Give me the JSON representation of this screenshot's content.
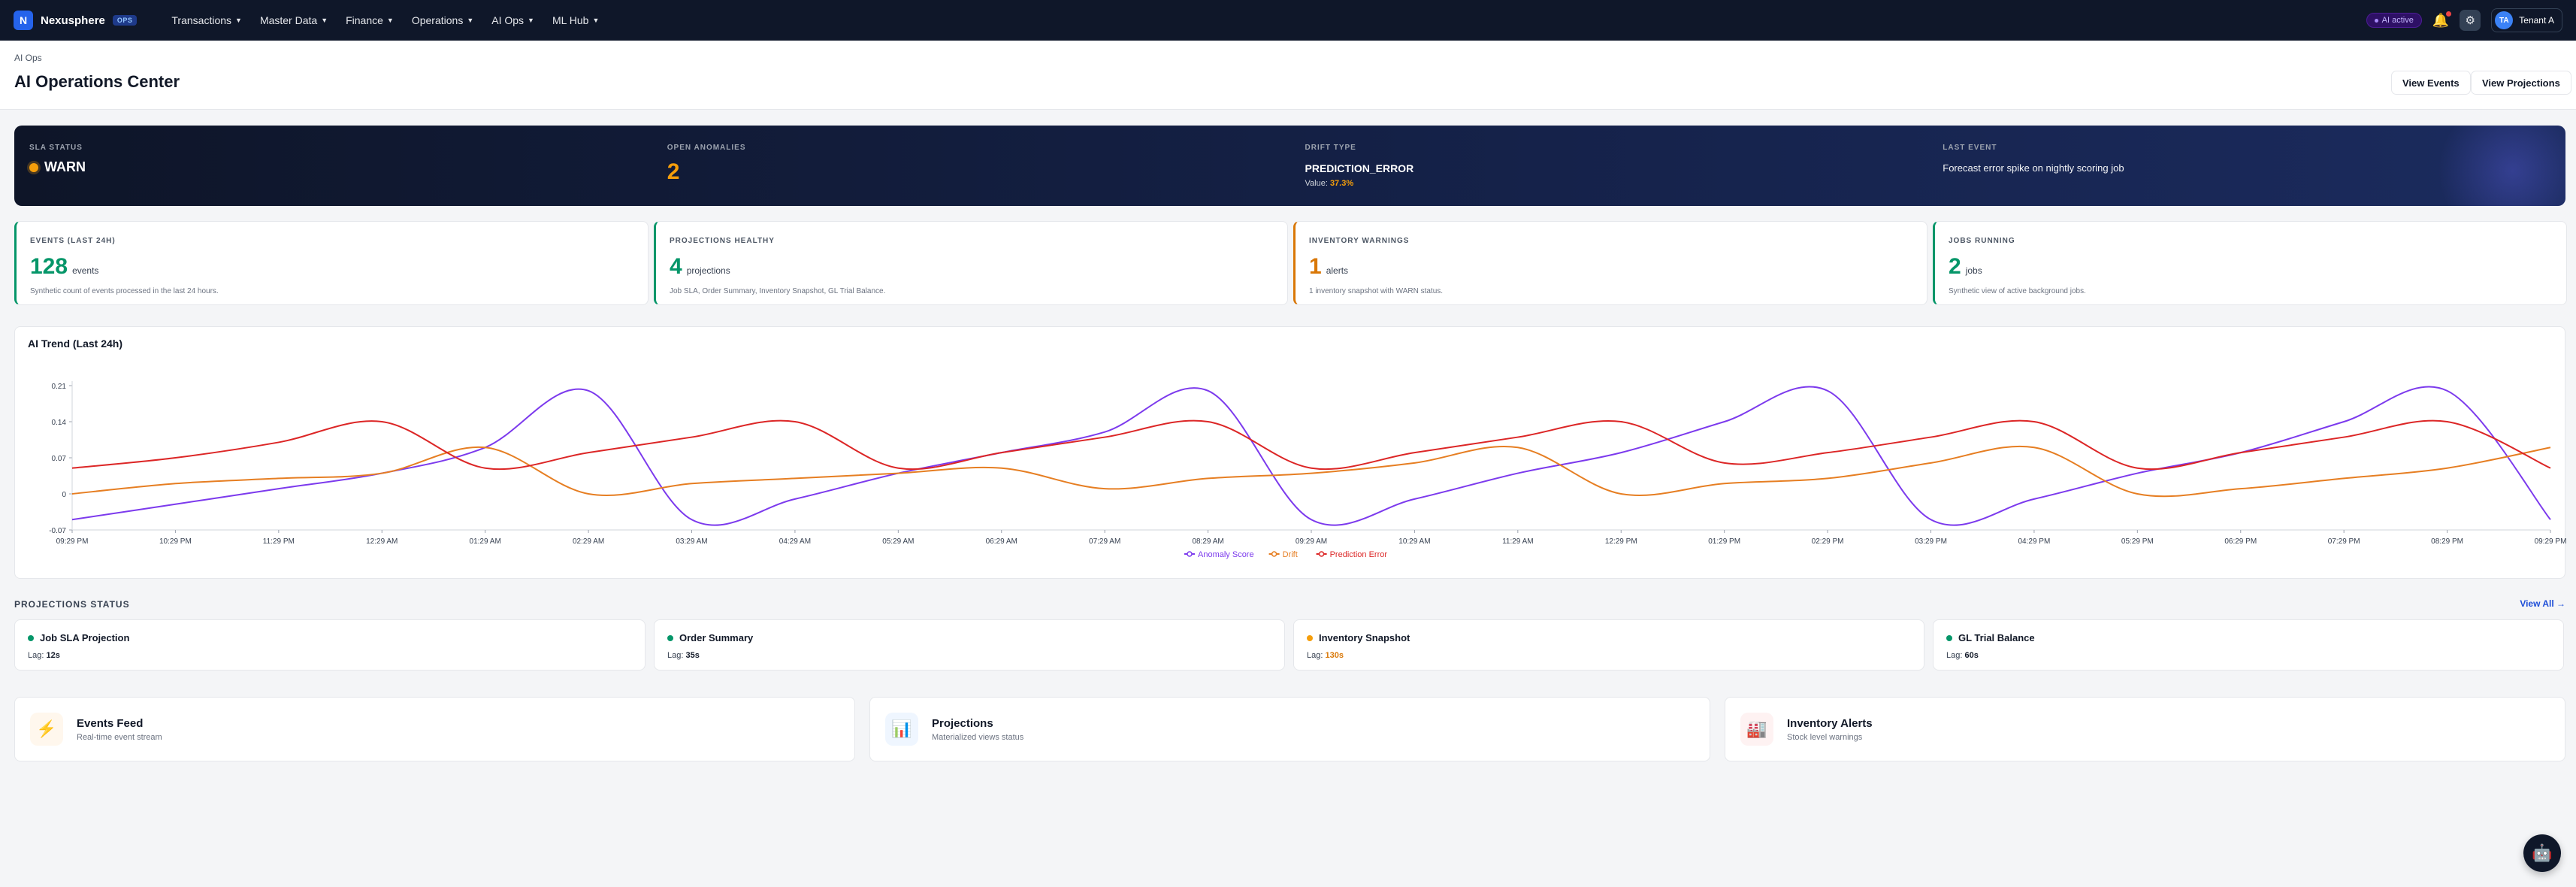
{
  "nav": {
    "logo_letter": "N",
    "brand": "Nexusphere",
    "env_badge": "OPS",
    "menu": [
      "Transactions",
      "Master Data",
      "Finance",
      "Operations",
      "AI Ops",
      "ML Hub"
    ],
    "ai_status": "AI active",
    "tenant_initials": "TA",
    "tenant_name": "Tenant A"
  },
  "header": {
    "breadcrumb": "AI Ops",
    "title": "AI Operations Center",
    "view_events": "View Events",
    "view_projections": "View Projections"
  },
  "hero": {
    "sla_label": "SLA STATUS",
    "sla_value": "WARN",
    "anomalies_label": "OPEN ANOMALIES",
    "anomalies_value": "2",
    "drift_label": "DRIFT TYPE",
    "drift_value": "PREDICTION_ERROR",
    "drift_value_prefix": "Value:",
    "drift_value_num": "37.3%",
    "last_event_label": "LAST EVENT",
    "last_event_value": "Forecast error spike on nightly scoring job"
  },
  "kpis": [
    {
      "label": "EVENTS (LAST 24H)",
      "value": "128",
      "unit": "events",
      "desc": "Synthetic count of events processed in the last 24 hours.",
      "color": "#059669"
    },
    {
      "label": "PROJECTIONS HEALTHY",
      "value": "4",
      "unit": "projections",
      "desc": "Job SLA, Order Summary, Inventory Snapshot, GL Trial Balance.",
      "color": "#059669"
    },
    {
      "label": "INVENTORY WARNINGS",
      "value": "1",
      "unit": "alerts",
      "desc": "1 inventory snapshot with WARN status.",
      "color": "#d97706"
    },
    {
      "label": "JOBS RUNNING",
      "value": "2",
      "unit": "jobs",
      "desc": "Synthetic view of active background jobs.",
      "color": "#059669"
    }
  ],
  "chart": {
    "title": "AI Trend (Last 24h)"
  },
  "chart_data": {
    "type": "line",
    "ylim": [
      -0.07,
      0.21
    ],
    "yticks": [
      "0.21",
      "0.14",
      "0.07",
      "0",
      "-0.07"
    ],
    "x": [
      "09:29 PM",
      "10:29 PM",
      "11:29 PM",
      "12:29 AM",
      "01:29 AM",
      "02:29 AM",
      "03:29 AM",
      "04:29 AM",
      "05:29 AM",
      "06:29 AM",
      "07:29 AM",
      "08:29 AM",
      "09:29 AM",
      "10:29 AM",
      "11:29 AM",
      "12:29 PM",
      "01:29 PM",
      "02:29 PM",
      "03:29 PM",
      "04:29 PM",
      "05:29 PM",
      "06:29 PM",
      "07:29 PM",
      "08:29 PM",
      "09:29 PM"
    ],
    "series": [
      {
        "name": "Anomaly Score",
        "color": "#7c3aed",
        "values": [
          -0.05,
          -0.02,
          0.01,
          0.04,
          0.09,
          0.2,
          -0.05,
          -0.01,
          0.04,
          0.08,
          0.12,
          0.2,
          -0.05,
          -0.01,
          0.04,
          0.08,
          0.14,
          0.2,
          -0.05,
          -0.01,
          0.04,
          0.08,
          0.14,
          0.2,
          -0.05
        ]
      },
      {
        "name": "Drift",
        "color": "#e67e22",
        "values": [
          0.0,
          0.02,
          0.03,
          0.04,
          0.09,
          0.0,
          0.02,
          0.03,
          0.04,
          0.05,
          0.01,
          0.03,
          0.04,
          0.06,
          0.09,
          0.0,
          0.02,
          0.03,
          0.06,
          0.09,
          0.0,
          0.01,
          0.03,
          0.05,
          0.09
        ]
      },
      {
        "name": "Prediction Error",
        "color": "#dc2626",
        "values": [
          0.05,
          0.07,
          0.1,
          0.14,
          0.05,
          0.08,
          0.11,
          0.14,
          0.05,
          0.08,
          0.11,
          0.14,
          0.05,
          0.08,
          0.11,
          0.14,
          0.06,
          0.08,
          0.11,
          0.14,
          0.05,
          0.08,
          0.11,
          0.14,
          0.05
        ]
      }
    ]
  },
  "projections": {
    "title": "PROJECTIONS STATUS",
    "view_all": "View All →",
    "lag_label": "Lag:",
    "items": [
      {
        "name": "Job SLA Projection",
        "lag": "12s",
        "status_color": "#059669",
        "lag_color": "#111827"
      },
      {
        "name": "Order Summary",
        "lag": "35s",
        "status_color": "#059669",
        "lag_color": "#111827"
      },
      {
        "name": "Inventory Snapshot",
        "lag": "130s",
        "status_color": "#f59e0b",
        "lag_color": "#d97706"
      },
      {
        "name": "GL Trial Balance",
        "lag": "60s",
        "status_color": "#059669",
        "lag_color": "#111827"
      }
    ]
  },
  "quick_links": [
    {
      "title": "Events Feed",
      "sub": "Real-time event stream",
      "icon": "lightning-icon",
      "glyph": "⚡",
      "bg": "#fff7ed"
    },
    {
      "title": "Projections",
      "sub": "Materialized views status",
      "icon": "bar-chart-icon",
      "glyph": "📊",
      "bg": "#eff6ff"
    },
    {
      "title": "Inventory Alerts",
      "sub": "Stock level warnings",
      "icon": "factory-icon",
      "glyph": "🏭",
      "bg": "#fef2f2"
    }
  ]
}
